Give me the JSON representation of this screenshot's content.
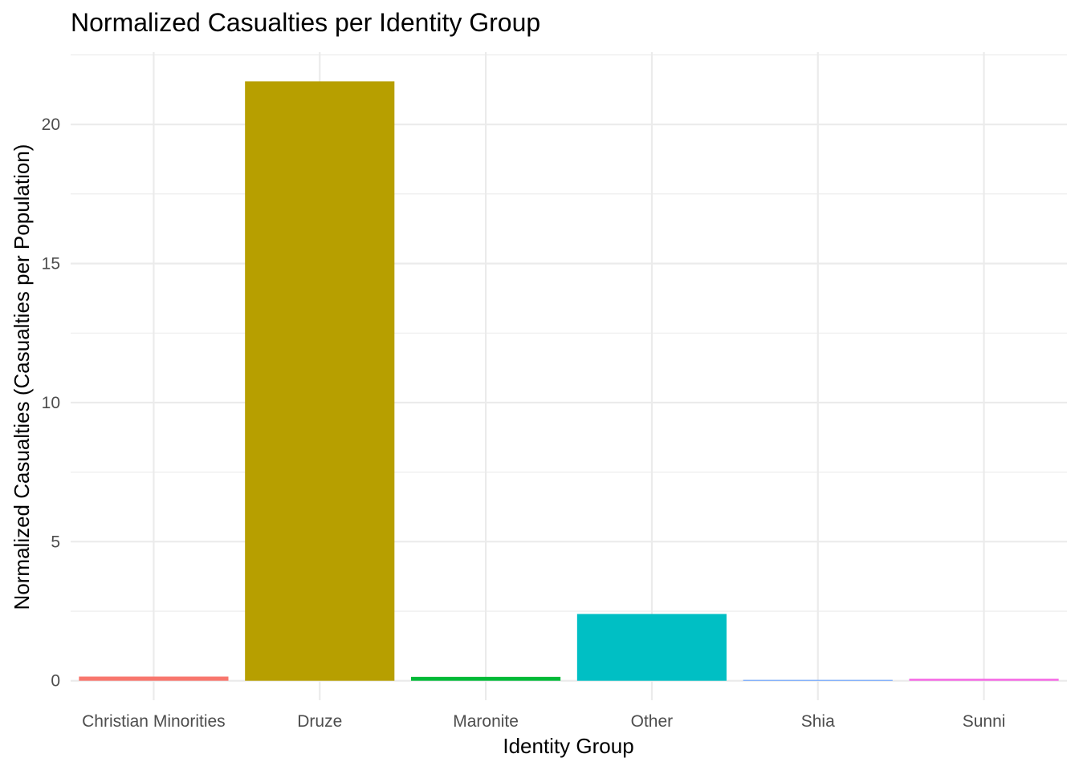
{
  "chart_data": {
    "type": "bar",
    "title": "Normalized Casualties per Identity Group",
    "xlabel": "Identity Group",
    "ylabel": "Normalized Casualties (Casualties per Population)",
    "categories": [
      "Christian Minorities",
      "Druze",
      "Maronite",
      "Other",
      "Shia",
      "Sunni"
    ],
    "values": [
      0.15,
      21.55,
      0.14,
      2.4,
      0.03,
      0.07
    ],
    "colors": [
      "#F8766D",
      "#B79F00",
      "#00BA38",
      "#00BFC4",
      "#619CFF",
      "#F564E3"
    ],
    "ylim": [
      -0.7,
      22.6
    ],
    "yticks": [
      0,
      5,
      10,
      15,
      20
    ],
    "ytick_labels": [
      "0",
      "5",
      "10",
      "15",
      "20"
    ],
    "grid": true,
    "legend": "none"
  }
}
